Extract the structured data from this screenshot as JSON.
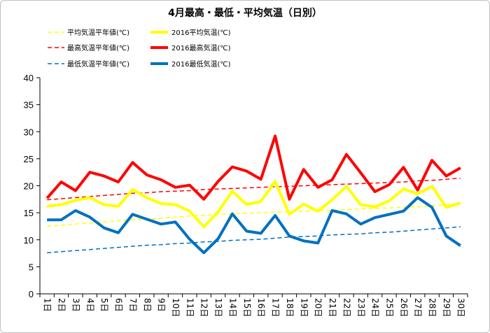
{
  "chart_data": {
    "type": "line",
    "title": "4月最高・最低・平均気温（日別）",
    "xlabel": "",
    "ylabel": "",
    "ylim": [
      0,
      40
    ],
    "yticks": [
      0,
      5,
      10,
      15,
      20,
      25,
      30,
      35,
      40
    ],
    "grid": false,
    "legend_position": "top",
    "categories": [
      "1日",
      "2日",
      "3日",
      "4日",
      "5日",
      "6日",
      "7日",
      "8日",
      "9日",
      "10日",
      "11日",
      "12日",
      "13日",
      "14日",
      "15日",
      "16日",
      "17日",
      "18日",
      "19日",
      "20日",
      "21日",
      "22日",
      "23日",
      "24日",
      "25日",
      "26日",
      "27日",
      "28日",
      "29日",
      "30日"
    ],
    "series": [
      {
        "name": "平均気温平年値(℃)",
        "style": "dashed",
        "color": "#ffff00",
        "values": [
          12.5,
          12.7,
          12.9,
          13.1,
          13.3,
          13.5,
          13.7,
          13.8,
          14.0,
          14.2,
          14.4,
          14.5,
          14.7,
          14.8,
          14.9,
          15.0,
          15.1,
          15.2,
          15.3,
          15.4,
          15.5,
          15.6,
          15.7,
          15.8,
          15.9,
          16.0,
          16.1,
          16.3,
          16.5,
          16.8
        ]
      },
      {
        "name": "2016平均気温(℃)",
        "style": "solid",
        "color": "#ffff00",
        "values": [
          16.2,
          16.5,
          17.3,
          17.8,
          16.5,
          16.2,
          19.3,
          17.8,
          16.7,
          16.5,
          15.3,
          12.4,
          15.2,
          19.0,
          16.5,
          17.1,
          20.8,
          14.7,
          16.6,
          15.3,
          17.4,
          19.9,
          16.5,
          16.1,
          17.2,
          19.4,
          18.5,
          19.9,
          16.0,
          16.8
        ]
      },
      {
        "name": "最高気温平年値(℃)",
        "style": "dashed",
        "color": "#ff0000",
        "values": [
          17.4,
          17.6,
          17.8,
          18.0,
          18.2,
          18.4,
          18.6,
          18.7,
          18.9,
          19.0,
          19.1,
          19.3,
          19.4,
          19.5,
          19.6,
          19.7,
          19.8,
          19.9,
          20.0,
          20.1,
          20.2,
          20.3,
          20.4,
          20.5,
          20.6,
          20.7,
          20.9,
          21.0,
          21.2,
          21.4
        ]
      },
      {
        "name": "2016最高気温(℃)",
        "style": "solid",
        "color": "#ff0000",
        "values": [
          17.7,
          20.7,
          19.1,
          22.5,
          21.8,
          20.7,
          24.3,
          22.0,
          21.1,
          19.7,
          20.1,
          17.5,
          20.8,
          23.5,
          22.7,
          21.2,
          29.2,
          17.5,
          23.0,
          19.7,
          21.1,
          25.8,
          22.4,
          18.9,
          20.2,
          23.4,
          19.2,
          24.7,
          21.8,
          23.3
        ]
      },
      {
        "name": "最低気温平年値(℃)",
        "style": "dashed",
        "color": "#0070c0",
        "values": [
          7.6,
          7.8,
          8.0,
          8.2,
          8.4,
          8.6,
          8.8,
          9.0,
          9.1,
          9.3,
          9.4,
          9.6,
          9.7,
          9.9,
          10.0,
          10.1,
          10.3,
          10.5,
          10.6,
          10.7,
          10.9,
          11.0,
          11.1,
          11.3,
          11.4,
          11.6,
          11.8,
          12.0,
          12.2,
          12.4
        ]
      },
      {
        "name": "2016最低気温(℃)",
        "style": "solid",
        "color": "#0070c0",
        "values": [
          13.7,
          13.7,
          15.4,
          14.2,
          12.2,
          11.3,
          14.7,
          13.8,
          12.9,
          13.3,
          10.1,
          7.6,
          10.2,
          14.8,
          11.6,
          11.2,
          14.5,
          10.7,
          9.8,
          9.4,
          15.4,
          14.8,
          12.9,
          14.1,
          14.7,
          15.3,
          17.8,
          16.0,
          10.7,
          8.9
        ]
      }
    ]
  }
}
